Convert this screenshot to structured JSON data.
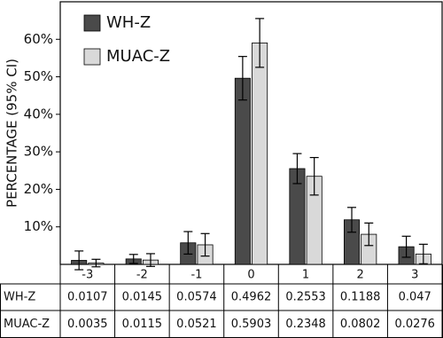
{
  "chart_data": {
    "type": "bar",
    "y_label": "PERCENTAGE (95% CI)",
    "categories": [
      "-3",
      "-2",
      "-1",
      "0",
      "1",
      "2",
      "3"
    ],
    "series": [
      {
        "name": "WH-Z",
        "color": "#4a4a4a",
        "values": [
          1.07,
          1.45,
          5.74,
          49.62,
          25.53,
          11.88,
          4.7
        ],
        "value_labels": [
          "0.0107",
          "0.0145",
          "0.0574",
          "0.4962",
          "0.2553",
          "0.1188",
          "0.047"
        ],
        "errors": [
          2.5,
          1.2,
          3,
          5.8,
          4,
          3.3,
          2.8
        ]
      },
      {
        "name": "MUAC-Z",
        "color": "#d9d9d9",
        "values": [
          0.35,
          1.15,
          5.21,
          59.03,
          23.48,
          8.02,
          2.76
        ],
        "value_labels": [
          "0.0035",
          "0.0115",
          "0.0521",
          "0.5903",
          "0.2348",
          "0.0802",
          "0.0276"
        ],
        "errors": [
          1,
          1.7,
          3,
          6.5,
          5,
          3,
          2.6
        ]
      }
    ],
    "ylim": [
      0,
      70
    ],
    "yticks": [
      {
        "value": 10,
        "label": "10%"
      },
      {
        "value": 20,
        "label": "20%"
      },
      {
        "value": 30,
        "label": "30%"
      },
      {
        "value": 40,
        "label": "40%"
      },
      {
        "value": 50,
        "label": "50%"
      },
      {
        "value": 60,
        "label": "60%"
      }
    ],
    "legend": "top-left"
  }
}
